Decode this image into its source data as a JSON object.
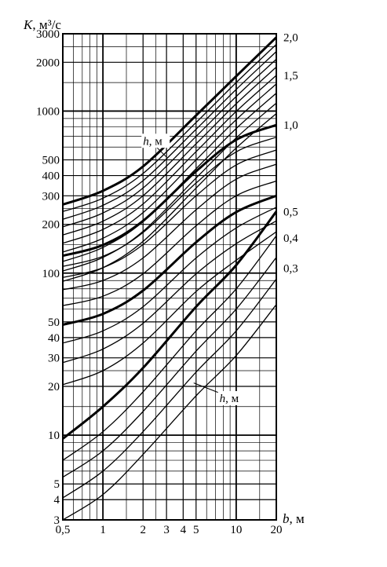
{
  "chart_data": {
    "type": "line",
    "ylabel_symbol": "K",
    "ylabel_unit": ", м³/с",
    "xlabel_symbol": "b",
    "xlabel_unit": ", м",
    "x_scale": "log",
    "y_scale": "log",
    "xlim": [
      0.5,
      20
    ],
    "ylim": [
      3,
      3000
    ],
    "x_ticks": [
      {
        "value": 0.5,
        "label": "0,5"
      },
      {
        "value": 1,
        "label": "1"
      },
      {
        "value": 2,
        "label": "2"
      },
      {
        "value": 3,
        "label": "3"
      },
      {
        "value": 4,
        "label": "4"
      },
      {
        "value": 5,
        "label": "5"
      },
      {
        "value": 10,
        "label": "10"
      },
      {
        "value": 20,
        "label": "20"
      }
    ],
    "y_ticks": [
      {
        "value": 3,
        "label": "3"
      },
      {
        "value": 4,
        "label": "4"
      },
      {
        "value": 5,
        "label": "5"
      },
      {
        "value": 10,
        "label": "10"
      },
      {
        "value": 20,
        "label": "20"
      },
      {
        "value": 30,
        "label": "30"
      },
      {
        "value": 40,
        "label": "40"
      },
      {
        "value": 50,
        "label": "50"
      },
      {
        "value": 100,
        "label": "100"
      },
      {
        "value": 200,
        "label": "200"
      },
      {
        "value": 300,
        "label": "300"
      },
      {
        "value": 400,
        "label": "400"
      },
      {
        "value": 500,
        "label": "500"
      },
      {
        "value": 1000,
        "label": "1000"
      },
      {
        "value": 2000,
        "label": "2000"
      },
      {
        "value": 3000,
        "label": "3000"
      }
    ],
    "x_minor_grid": [
      0.6,
      0.7,
      0.8,
      0.9,
      1.5,
      2.5,
      6,
      7,
      8,
      9,
      15
    ],
    "y_minor_grid": [
      6,
      7,
      8,
      9,
      15,
      25,
      60,
      70,
      80,
      90,
      150,
      250,
      600,
      700,
      800,
      900,
      1500,
      2500
    ],
    "series": [
      {
        "h": 2.0,
        "bold": true,
        "points": [
          [
            0.5,
            265
          ],
          [
            1,
            322
          ],
          [
            2,
            455
          ],
          [
            5,
            940
          ],
          [
            10,
            1640
          ],
          [
            20,
            2850
          ]
        ]
      },
      {
        "h": 1.9,
        "bold": false,
        "points": [
          [
            0.5,
            240
          ],
          [
            1,
            290
          ],
          [
            2,
            412
          ],
          [
            5,
            850
          ],
          [
            10,
            1500
          ],
          [
            20,
            2580
          ]
        ]
      },
      {
        "h": 1.8,
        "bold": false,
        "points": [
          [
            0.5,
            215
          ],
          [
            1,
            262
          ],
          [
            2,
            372
          ],
          [
            5,
            772
          ],
          [
            10,
            1360
          ],
          [
            20,
            2330
          ]
        ]
      },
      {
        "h": 1.7,
        "bold": false,
        "points": [
          [
            0.5,
            193
          ],
          [
            1,
            235
          ],
          [
            2,
            335
          ],
          [
            5,
            698
          ],
          [
            10,
            1230
          ],
          [
            20,
            2090
          ]
        ]
      },
      {
        "h": 1.6,
        "bold": false,
        "points": [
          [
            0.5,
            172
          ],
          [
            1,
            209
          ],
          [
            2,
            300
          ],
          [
            5,
            628
          ],
          [
            10,
            1110
          ],
          [
            20,
            1870
          ]
        ]
      },
      {
        "h": 1.5,
        "bold": false,
        "points": [
          [
            0.5,
            153
          ],
          [
            1,
            186
          ],
          [
            2,
            267
          ],
          [
            5,
            562
          ],
          [
            10,
            995
          ],
          [
            20,
            1660
          ]
        ]
      },
      {
        "h": 1.4,
        "bold": false,
        "points": [
          [
            0.5,
            135
          ],
          [
            1,
            164
          ],
          [
            2,
            236
          ],
          [
            5,
            500
          ],
          [
            10,
            885
          ],
          [
            20,
            1470
          ]
        ]
      },
      {
        "h": 1.3,
        "bold": false,
        "points": [
          [
            0.5,
            118
          ],
          [
            1,
            144
          ],
          [
            2,
            208
          ],
          [
            5,
            441
          ],
          [
            10,
            781
          ],
          [
            20,
            1290
          ]
        ]
      },
      {
        "h": 1.2,
        "bold": false,
        "points": [
          [
            0.5,
            103
          ],
          [
            1,
            125
          ],
          [
            2,
            181
          ],
          [
            5,
            386
          ],
          [
            10,
            683
          ],
          [
            20,
            1120
          ]
        ]
      },
      {
        "h": 1.1,
        "bold": false,
        "points": [
          [
            0.5,
            89
          ],
          [
            1,
            108
          ],
          [
            2,
            157
          ],
          [
            5,
            335
          ],
          [
            10,
            592
          ],
          [
            20,
            965
          ]
        ]
      },
      {
        "h": 1.0,
        "bold": true,
        "points": [
          [
            0.5,
            128
          ],
          [
            1,
            149
          ],
          [
            2,
            210
          ],
          [
            5,
            425
          ],
          [
            10,
            665
          ],
          [
            20,
            820
          ]
        ]
      },
      {
        "h": 0.9,
        "bold": false,
        "points": [
          [
            0.5,
            110
          ],
          [
            1,
            127
          ],
          [
            2,
            178
          ],
          [
            5,
            360
          ],
          [
            10,
            560
          ],
          [
            20,
            690
          ]
        ]
      },
      {
        "h": 0.8,
        "bold": false,
        "points": [
          [
            0.5,
            94
          ],
          [
            1,
            108
          ],
          [
            2,
            150
          ],
          [
            5,
            300
          ],
          [
            10,
            465
          ],
          [
            20,
            575
          ]
        ]
      },
      {
        "h": 0.7,
        "bold": false,
        "points": [
          [
            0.5,
            79
          ],
          [
            1,
            90
          ],
          [
            2,
            124
          ],
          [
            5,
            246
          ],
          [
            10,
            380
          ],
          [
            20,
            470
          ]
        ]
      },
      {
        "h": 0.6,
        "bold": false,
        "points": [
          [
            0.5,
            63
          ],
          [
            1,
            72
          ],
          [
            2,
            99
          ],
          [
            5,
            196
          ],
          [
            10,
            300
          ],
          [
            20,
            370
          ]
        ]
      },
      {
        "h": 0.5,
        "bold": true,
        "points": [
          [
            0.5,
            48
          ],
          [
            1,
            56
          ],
          [
            2,
            78
          ],
          [
            5,
            155
          ],
          [
            10,
            238
          ],
          [
            20,
            300
          ]
        ]
      },
      {
        "h": 0.45,
        "bold": false,
        "points": [
          [
            0.5,
            37
          ],
          [
            1,
            44
          ],
          [
            2,
            62
          ],
          [
            5,
            124
          ],
          [
            10,
            190
          ],
          [
            20,
            255
          ]
        ]
      },
      {
        "h": 0.4,
        "bold": false,
        "points": [
          [
            0.5,
            28
          ],
          [
            1,
            34
          ],
          [
            2,
            49
          ],
          [
            5,
            99
          ],
          [
            10,
            152
          ],
          [
            20,
            210
          ]
        ]
      },
      {
        "h": 0.35,
        "bold": false,
        "points": [
          [
            0.5,
            20.5
          ],
          [
            1,
            25
          ],
          [
            2,
            37
          ],
          [
            5,
            77
          ],
          [
            10,
            120
          ],
          [
            20,
            180
          ]
        ]
      },
      {
        "h": 0.3,
        "bold": true,
        "points": [
          [
            0.5,
            9.5
          ],
          [
            1,
            15
          ],
          [
            2,
            26
          ],
          [
            5,
            62
          ],
          [
            10,
            112
          ],
          [
            20,
            240
          ]
        ]
      },
      {
        "h": 0.25,
        "bold": false,
        "points": [
          [
            0.5,
            7
          ],
          [
            1,
            10.5
          ],
          [
            2,
            18.5
          ],
          [
            5,
            44
          ],
          [
            10,
            80
          ],
          [
            20,
            170
          ]
        ]
      },
      {
        "h": 0.2,
        "bold": false,
        "points": [
          [
            0.5,
            5.5
          ],
          [
            1,
            8
          ],
          [
            2,
            14
          ],
          [
            5,
            33
          ],
          [
            10,
            60
          ],
          [
            20,
            125
          ]
        ]
      },
      {
        "h": 0.15,
        "bold": false,
        "points": [
          [
            0.5,
            4.1
          ],
          [
            1,
            6
          ],
          [
            2,
            10.5
          ],
          [
            5,
            24.5
          ],
          [
            10,
            44
          ],
          [
            20,
            92
          ]
        ]
      },
      {
        "h": 0.1,
        "bold": false,
        "points": [
          [
            0.5,
            3.0
          ],
          [
            1,
            4.3
          ],
          [
            2,
            7.6
          ],
          [
            5,
            17.5
          ],
          [
            10,
            31
          ],
          [
            20,
            64
          ]
        ]
      }
    ],
    "right_labels": [
      {
        "label": "2,0",
        "y": 2850
      },
      {
        "label": "1,5",
        "y": 1660
      },
      {
        "label": "1,0",
        "y": 820
      },
      {
        "label": "0,5",
        "y": 240
      },
      {
        "label": "0,4",
        "y": 165
      },
      {
        "label": "0,3",
        "y": 107
      }
    ],
    "annotations": [
      {
        "text_symbol": "h",
        "text_unit": ", м",
        "at": [
          2.0,
          620
        ],
        "pointer_to": [
          3.0,
          520
        ]
      },
      {
        "text_symbol": "h",
        "text_unit": ", м",
        "at": [
          7.5,
          16
        ],
        "pointer_to": [
          4.8,
          21
        ]
      }
    ]
  }
}
